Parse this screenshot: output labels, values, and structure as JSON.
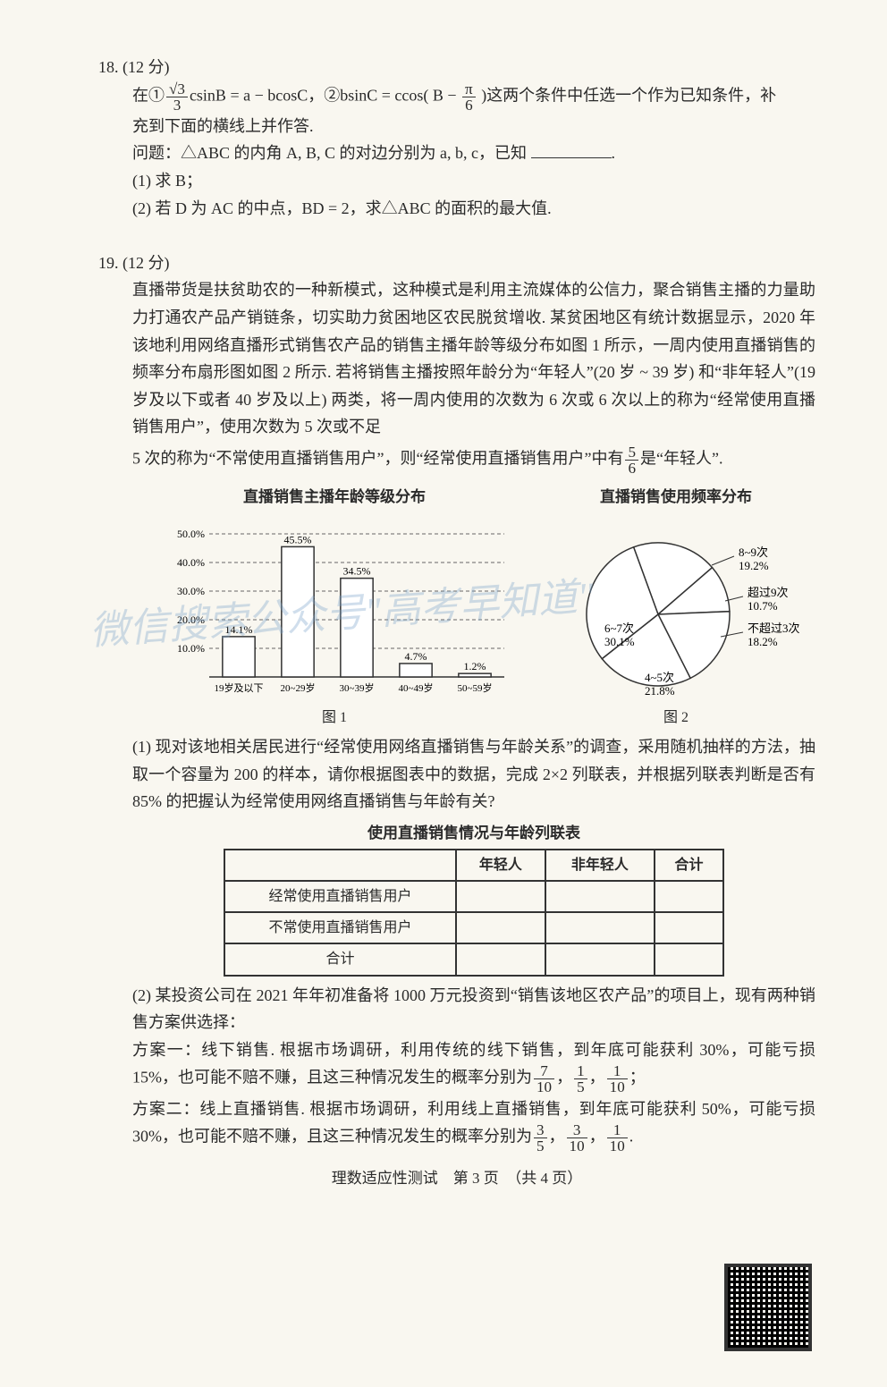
{
  "q18": {
    "num": "18. (12 分)",
    "line1a": "在①",
    "line1b": "csinB = a − bcosC，②bsinC = ccos",
    "line1c": "这两个条件中任选一个作为已知条件，补",
    "frac1_num": "√3",
    "frac1_den": "3",
    "paren": "( B − ",
    "paren_num": "π",
    "paren_den": "6",
    "paren_close": " )",
    "line2": "充到下面的横线上并作答.",
    "line3a": "问题：△ABC 的内角 A, B, C 的对边分别为 a, b, c，已知 ",
    "line3b": ".",
    "sub1": "(1) 求 B；",
    "sub2": "(2) 若 D 为 AC 的中点，BD = 2，求△ABC 的面积的最大值."
  },
  "q19": {
    "num": "19. (12 分)",
    "p1": "直播带货是扶贫助农的一种新模式，这种模式是利用主流媒体的公信力，聚合销售主播的力量助力打通农产品产销链条，切实助力贫困地区农民脱贫增收. 某贫困地区有统计数据显示，2020 年该地利用网络直播形式销售农产品的销售主播年龄等级分布如图 1 所示，一周内使用直播销售的频率分布扇形图如图 2 所示. 若将销售主播按照年龄分为“年轻人”(20 岁 ~ 39 岁) 和“非年轻人”(19 岁及以下或者 40 岁及以上) 两类，将一周内使用的次数为 6 次或 6 次以上的称为“经常使用直播销售用户”，使用次数为 5 次或不足",
    "p2a": "5 次的称为“不常使用直播销售用户”，则“经常使用直播销售用户”中有",
    "p2_num": "5",
    "p2_den": "6",
    "p2b": "是“年轻人”.",
    "bar_chart": {
      "title": "直播销售主播年龄等级分布",
      "categories": [
        "19岁及以下",
        "20~29岁",
        "30~39岁",
        "40~49岁",
        "50~59岁"
      ],
      "values": [
        14.1,
        45.5,
        34.5,
        4.7,
        1.2
      ],
      "value_labels": [
        "14.1%",
        "45.5%",
        "34.5%",
        "4.7%",
        "1.2%"
      ],
      "y_ticks": [
        "10.0%",
        "20.0%",
        "30.0%",
        "40.0%",
        "50.0%"
      ],
      "y_max": 50,
      "bar_color": "#ffffff",
      "border_color": "#333333",
      "grid_color": "#666666",
      "caption": "图 1"
    },
    "pie_chart": {
      "title": "直播销售使用频率分布",
      "slices": [
        {
          "label": "8~9次",
          "sub": "19.2%",
          "value": 19.2,
          "color": "#ffffff"
        },
        {
          "label": "超过9次",
          "sub": "10.7%",
          "value": 10.7,
          "color": "#ffffff"
        },
        {
          "label": "不超过3次",
          "sub": "18.2%",
          "value": 18.2,
          "color": "#ffffff"
        },
        {
          "label": "4~5次",
          "sub": "21.8%",
          "value": 21.8,
          "color": "#ffffff"
        },
        {
          "label": "6~7次",
          "sub": "30.1%",
          "value": 30.1,
          "color": "#ffffff"
        }
      ],
      "border_color": "#333333",
      "caption": "图 2"
    },
    "sub1": "(1) 现对该地相关居民进行“经常使用网络直播销售与年龄关系”的调查，采用随机抽样的方法，抽取一个容量为 200 的样本，请你根据图表中的数据，完成 2×2 列联表，并根据列联表判断是否有 85% 的把握认为经常使用网络直播销售与年龄有关?",
    "table": {
      "title": "使用直播销售情况与年龄列联表",
      "cols": [
        "",
        "年轻人",
        "非年轻人",
        "合计"
      ],
      "rows": [
        [
          "经常使用直播销售用户",
          "",
          "",
          ""
        ],
        [
          "不常使用直播销售用户",
          "",
          "",
          ""
        ],
        [
          "合计",
          "",
          "",
          ""
        ]
      ]
    },
    "sub2": "(2) 某投资公司在 2021 年年初准备将 1000 万元投资到“销售该地区农产品”的项目上，现有两种销售方案供选择：",
    "plan1a": "方案一：线下销售. 根据市场调研，利用传统的线下销售，到年底可能获利 30%，可能亏损 15%，也可能不赔不赚，且这三种情况发生的概率分别为",
    "p1f1_num": "7",
    "p1f1_den": "10",
    "p1f2_num": "1",
    "p1f2_den": "5",
    "p1f3_num": "1",
    "p1f3_den": "10",
    "semi": "；",
    "plan2a": "方案二：线上直播销售. 根据市场调研，利用线上直播销售，到年底可能获利 50%，可能亏损 30%，也可能不赔不赚，且这三种情况发生的概率分别为",
    "p2f1_num": "3",
    "p2f1_den": "5",
    "p2f2_num": "3",
    "p2f2_den": "10",
    "p2f3_num": "1",
    "p2f3_den": "10",
    "period": "."
  },
  "footer": "理数适应性测试　第 3 页　（共 4 页）"
}
